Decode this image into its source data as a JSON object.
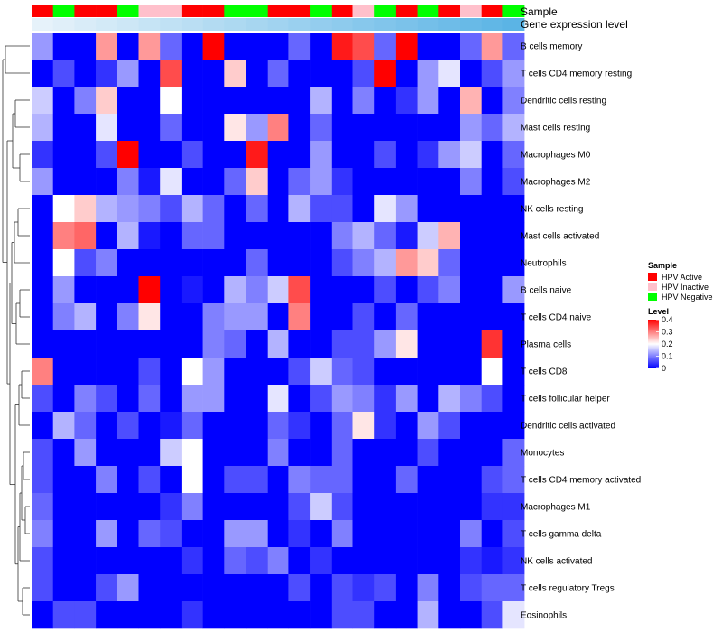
{
  "chart_data": {
    "type": "heatmap",
    "title": "",
    "annotation_tracks": {
      "sample_label": "Sample",
      "gene_expression_label": "Gene expression level",
      "sample_groups": [
        "Active",
        "Negative",
        "Active",
        "Active",
        "Negative",
        "Inactive",
        "Inactive",
        "Active",
        "Active",
        "Negative",
        "Negative",
        "Active",
        "Active",
        "Negative",
        "Active",
        "Inactive",
        "Negative",
        "Active",
        "Negative",
        "Active",
        "Inactive",
        "Active",
        "Negative"
      ],
      "group_colors": {
        "Active": "#ff0000",
        "Inactive": "#ffc0cb",
        "Negative": "#00ff00"
      },
      "gene_expression_colors": {
        "start": "#e6f2fa",
        "end": "#5bb4e5"
      }
    },
    "rows": [
      {
        "label": "B cells memory",
        "values": [
          0.12,
          0.0,
          0.0,
          0.28,
          0.0,
          0.28,
          0.08,
          0.0,
          0.4,
          0.0,
          0.0,
          0.0,
          0.08,
          0.0,
          0.38,
          0.34,
          0.08,
          0.4,
          0.0,
          0.0,
          0.08,
          0.28,
          0.08
        ]
      },
      {
        "label": "T cells CD4 memory resting",
        "values": [
          0.0,
          0.06,
          0.0,
          0.04,
          0.12,
          0.0,
          0.34,
          0.0,
          0.0,
          0.24,
          0.0,
          0.08,
          0.0,
          0.0,
          0.0,
          0.06,
          0.4,
          0.0,
          0.12,
          0.18,
          0.0,
          0.06,
          0.12
        ]
      },
      {
        "label": "Dendritic cells resting",
        "values": [
          0.16,
          0.0,
          0.1,
          0.24,
          0.0,
          0.0,
          0.2,
          0.0,
          0.0,
          0.0,
          0.0,
          0.0,
          0.0,
          0.14,
          0.0,
          0.1,
          0.0,
          0.04,
          0.12,
          0.0,
          0.26,
          0.0,
          0.1
        ]
      },
      {
        "label": "Mast cells resting",
        "values": [
          0.14,
          0.0,
          0.0,
          0.18,
          0.0,
          0.0,
          0.08,
          0.0,
          0.0,
          0.22,
          0.12,
          0.3,
          0.0,
          0.08,
          0.0,
          0.0,
          0.0,
          0.0,
          0.0,
          0.0,
          0.12,
          0.08,
          0.14
        ]
      },
      {
        "label": "Macrophages M0",
        "values": [
          0.04,
          0.0,
          0.0,
          0.06,
          0.4,
          0.0,
          0.0,
          0.06,
          0.0,
          0.0,
          0.38,
          0.0,
          0.0,
          0.12,
          0.0,
          0.0,
          0.06,
          0.0,
          0.04,
          0.12,
          0.16,
          0.0,
          0.08
        ]
      },
      {
        "label": "Macrophages M2",
        "values": [
          0.12,
          0.0,
          0.0,
          0.0,
          0.1,
          0.02,
          0.18,
          0.0,
          0.0,
          0.08,
          0.24,
          0.0,
          0.08,
          0.12,
          0.04,
          0.0,
          0.0,
          0.0,
          0.0,
          0.0,
          0.1,
          0.0,
          0.06
        ]
      },
      {
        "label": "NK cells resting",
        "values": [
          0.0,
          0.2,
          0.24,
          0.14,
          0.12,
          0.1,
          0.06,
          0.14,
          0.08,
          0.0,
          0.08,
          0.0,
          0.14,
          0.06,
          0.06,
          0.0,
          0.18,
          0.12,
          0.0,
          0.0,
          0.0,
          0.0,
          0.0
        ]
      },
      {
        "label": "Mast cells activated",
        "values": [
          0.0,
          0.3,
          0.32,
          0.0,
          0.14,
          0.02,
          0.0,
          0.08,
          0.08,
          0.0,
          0.0,
          0.0,
          0.0,
          0.0,
          0.1,
          0.14,
          0.08,
          0.02,
          0.16,
          0.26,
          0.0,
          0.0,
          0.0
        ]
      },
      {
        "label": "Neutrophils",
        "values": [
          0.0,
          0.2,
          0.06,
          0.1,
          0.0,
          0.0,
          0.0,
          0.0,
          0.0,
          0.0,
          0.08,
          0.0,
          0.0,
          0.0,
          0.06,
          0.1,
          0.14,
          0.28,
          0.24,
          0.08,
          0.0,
          0.0,
          0.0
        ]
      },
      {
        "label": "B cells naive",
        "values": [
          0.0,
          0.12,
          0.0,
          0.0,
          0.0,
          0.4,
          0.0,
          0.02,
          0.0,
          0.14,
          0.1,
          0.16,
          0.34,
          0.0,
          0.0,
          0.0,
          0.06,
          0.0,
          0.06,
          0.1,
          0.0,
          0.0,
          0.12
        ]
      },
      {
        "label": "T cells CD4 naive",
        "values": [
          0.0,
          0.1,
          0.14,
          0.0,
          0.1,
          0.22,
          0.0,
          0.0,
          0.1,
          0.12,
          0.12,
          0.0,
          0.3,
          0.0,
          0.0,
          0.06,
          0.0,
          0.08,
          0.0,
          0.0,
          0.0,
          0.0,
          0.0
        ]
      },
      {
        "label": "Plasma cells",
        "values": [
          0.0,
          0.0,
          0.0,
          0.0,
          0.0,
          0.0,
          0.0,
          0.0,
          0.1,
          0.08,
          0.0,
          0.14,
          0.0,
          0.0,
          0.06,
          0.06,
          0.12,
          0.22,
          0.0,
          0.0,
          0.0,
          0.36,
          0.0
        ]
      },
      {
        "label": "T cells CD8",
        "values": [
          0.3,
          0.0,
          0.0,
          0.0,
          0.0,
          0.06,
          0.0,
          0.2,
          0.12,
          0.0,
          0.0,
          0.0,
          0.06,
          0.16,
          0.08,
          0.06,
          0.0,
          0.0,
          0.0,
          0.0,
          0.0,
          0.2,
          0.0
        ]
      },
      {
        "label": "T cells follicular helper",
        "values": [
          0.06,
          0.0,
          0.1,
          0.06,
          0.0,
          0.08,
          0.0,
          0.12,
          0.12,
          0.0,
          0.0,
          0.18,
          0.0,
          0.06,
          0.12,
          0.1,
          0.04,
          0.12,
          0.0,
          0.14,
          0.1,
          0.06,
          0.0
        ]
      },
      {
        "label": "Dendritic cells activated",
        "values": [
          0.0,
          0.14,
          0.08,
          0.0,
          0.06,
          0.0,
          0.02,
          0.08,
          0.0,
          0.0,
          0.0,
          0.08,
          0.04,
          0.0,
          0.08,
          0.22,
          0.04,
          0.0,
          0.12,
          0.06,
          0.0,
          0.0,
          0.0
        ]
      },
      {
        "label": "Monocytes",
        "values": [
          0.06,
          0.0,
          0.12,
          0.0,
          0.0,
          0.0,
          0.16,
          0.2,
          0.0,
          0.0,
          0.0,
          0.1,
          0.0,
          0.0,
          0.08,
          0.0,
          0.0,
          0.0,
          0.06,
          0.0,
          0.0,
          0.0,
          0.08
        ]
      },
      {
        "label": "T cells CD4 memory activated",
        "values": [
          0.06,
          0.0,
          0.0,
          0.1,
          0.0,
          0.06,
          0.0,
          0.2,
          0.0,
          0.06,
          0.06,
          0.0,
          0.1,
          0.08,
          0.08,
          0.0,
          0.0,
          0.08,
          0.0,
          0.0,
          0.0,
          0.06,
          0.08
        ]
      },
      {
        "label": "Macrophages M1",
        "values": [
          0.08,
          0.0,
          0.0,
          0.0,
          0.0,
          0.0,
          0.04,
          0.1,
          0.0,
          0.0,
          0.0,
          0.0,
          0.06,
          0.16,
          0.06,
          0.0,
          0.0,
          0.0,
          0.0,
          0.0,
          0.0,
          0.04,
          0.04
        ]
      },
      {
        "label": "T cells gamma delta",
        "values": [
          0.1,
          0.0,
          0.0,
          0.12,
          0.0,
          0.08,
          0.06,
          0.0,
          0.0,
          0.12,
          0.12,
          0.0,
          0.04,
          0.0,
          0.1,
          0.0,
          0.0,
          0.0,
          0.0,
          0.0,
          0.1,
          0.0,
          0.06
        ]
      },
      {
        "label": "NK cells activated",
        "values": [
          0.06,
          0.0,
          0.0,
          0.0,
          0.0,
          0.0,
          0.0,
          0.04,
          0.0,
          0.08,
          0.06,
          0.1,
          0.0,
          0.04,
          0.0,
          0.0,
          0.0,
          0.0,
          0.0,
          0.0,
          0.04,
          0.02,
          0.04
        ]
      },
      {
        "label": "T cells regulatory  Tregs",
        "values": [
          0.06,
          0.0,
          0.0,
          0.06,
          0.12,
          0.0,
          0.0,
          0.0,
          0.0,
          0.0,
          0.0,
          0.0,
          0.06,
          0.0,
          0.06,
          0.04,
          0.06,
          0.0,
          0.1,
          0.0,
          0.06,
          0.08,
          0.08
        ]
      },
      {
        "label": "Eosinophils",
        "values": [
          0.0,
          0.06,
          0.06,
          0.0,
          0.0,
          0.0,
          0.0,
          0.04,
          0.0,
          0.0,
          0.0,
          0.0,
          0.0,
          0.0,
          0.06,
          0.06,
          0.0,
          0.0,
          0.14,
          0.0,
          0.0,
          0.06,
          0.18
        ]
      }
    ],
    "color_scale": {
      "min": 0,
      "max": 0.4,
      "low": "#0000ff",
      "mid": "#ffffff",
      "high": "#ff0000",
      "mid_value": 0.2
    },
    "legend_sample": {
      "title": "Sample",
      "items": [
        {
          "label": "HPV Active",
          "color": "#ff0000"
        },
        {
          "label": "HPV Inactive",
          "color": "#ffc0cb"
        },
        {
          "label": "HPV Negative",
          "color": "#00ff00"
        }
      ]
    },
    "legend_level": {
      "title": "Level",
      "ticks": [
        {
          "label": "0.4",
          "value": 0.4
        },
        {
          "label": "0.3",
          "value": 0.3
        },
        {
          "label": "0.2",
          "value": 0.2
        },
        {
          "label": "0.1",
          "value": 0.1
        },
        {
          "label": "0",
          "value": 0
        }
      ]
    }
  }
}
